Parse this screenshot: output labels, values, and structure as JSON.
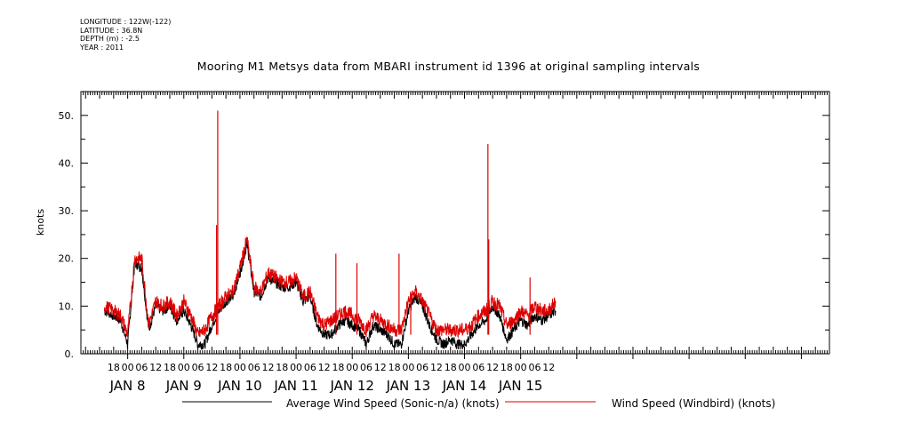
{
  "header": {
    "longitude": "LONGITUDE : 122W(-122)",
    "latitude": "LATITUDE : 36.8N",
    "depth": "DEPTH (m) : -2.5",
    "year": "YEAR : 2011"
  },
  "colors": {
    "series_average": "#000000",
    "series_windbird": "#dd0000",
    "axes": "#000000"
  },
  "chart_data": {
    "type": "line",
    "title": "Mooring M1 Metsys data from MBARI instrument id 1396 at original sampling intervals",
    "ylabel": "knots",
    "xlabel": "",
    "ylim": [
      0,
      55
    ],
    "xlim_hours_since_jan8_00": [
      -20,
      300
    ],
    "y_ticks": [
      "0.",
      "10.",
      "20.",
      "30.",
      "40.",
      "50."
    ],
    "x_hour_tick_labels": [
      "18",
      "00",
      "06",
      "12",
      "18",
      "00",
      "06",
      "12",
      "18",
      "00",
      "06",
      "12",
      "18",
      "00",
      "06",
      "12",
      "18",
      "00",
      "06",
      "12",
      "18",
      "00",
      "06",
      "12",
      "18",
      "00",
      "06",
      "12",
      "18",
      "00",
      "06",
      "12"
    ],
    "day_labels": [
      "JAN  8",
      "JAN  9",
      "JAN 10",
      "JAN 11",
      "JAN 12",
      "JAN 13",
      "JAN 14",
      "JAN 15"
    ],
    "grid": false,
    "legend_placement": "bottom",
    "series": [
      {
        "name": "Average Wind Speed (Sonic-n/a) (knots)",
        "color": "#000000",
        "x": [
          "2011-01-07 14:00",
          "2011-01-07 18:00",
          "2011-01-07 21:00",
          "2011-01-08 00:00",
          "2011-01-08 03:00",
          "2011-01-08 06:00",
          "2011-01-08 09:00",
          "2011-01-08 12:00",
          "2011-01-08 15:00",
          "2011-01-08 18:00",
          "2011-01-08 21:00",
          "2011-01-09 00:00",
          "2011-01-09 03:00",
          "2011-01-09 06:00",
          "2011-01-09 09:00",
          "2011-01-09 12:00",
          "2011-01-09 15:00",
          "2011-01-09 18:00",
          "2011-01-09 21:00",
          "2011-01-10 00:00",
          "2011-01-10 03:00",
          "2011-01-10 06:00",
          "2011-01-10 09:00",
          "2011-01-10 12:00",
          "2011-01-10 15:00",
          "2011-01-10 18:00",
          "2011-01-10 21:00",
          "2011-01-11 00:00",
          "2011-01-11 03:00",
          "2011-01-11 06:00",
          "2011-01-11 09:00",
          "2011-01-11 12:00",
          "2011-01-11 15:00",
          "2011-01-11 18:00",
          "2011-01-11 21:00",
          "2011-01-12 00:00",
          "2011-01-12 03:00",
          "2011-01-12 06:00",
          "2011-01-12 09:00",
          "2011-01-12 12:00",
          "2011-01-12 15:00",
          "2011-01-12 18:00",
          "2011-01-12 21:00",
          "2011-01-13 00:00",
          "2011-01-13 03:00",
          "2011-01-13 06:00",
          "2011-01-13 09:00",
          "2011-01-13 12:00",
          "2011-01-13 15:00",
          "2011-01-13 18:00",
          "2011-01-13 21:00",
          "2011-01-14 00:00",
          "2011-01-14 03:00",
          "2011-01-14 06:00",
          "2011-01-14 09:00",
          "2011-01-14 12:00",
          "2011-01-14 15:00",
          "2011-01-14 18:00",
          "2011-01-14 21:00",
          "2011-01-15 00:00",
          "2011-01-15 03:00",
          "2011-01-15 06:00",
          "2011-01-15 09:00",
          "2011-01-15 12:00",
          "2011-01-15 15:00"
        ],
        "values": [
          9,
          8,
          7,
          2,
          19,
          18,
          5,
          10,
          9,
          10,
          7,
          9,
          6,
          2,
          2,
          6,
          9,
          11,
          12,
          17,
          23,
          13,
          12,
          16,
          15,
          14,
          14,
          15,
          11,
          12,
          6,
          4,
          4,
          6,
          7,
          6,
          5,
          2,
          6,
          5,
          4,
          2,
          2,
          9,
          12,
          10,
          6,
          3,
          2,
          3,
          2,
          2,
          4,
          6,
          7,
          10,
          8,
          3,
          5,
          7,
          6,
          8,
          7,
          8,
          9
        ]
      },
      {
        "name": "Wind Speed (Windbird) (knots)",
        "color": "#dd0000",
        "x": [
          "2011-01-07 14:00",
          "2011-01-07 18:00",
          "2011-01-07 21:00",
          "2011-01-08 00:00",
          "2011-01-08 03:00",
          "2011-01-08 06:00",
          "2011-01-08 09:00",
          "2011-01-08 12:00",
          "2011-01-08 15:00",
          "2011-01-08 18:00",
          "2011-01-08 21:00",
          "2011-01-09 00:00",
          "2011-01-09 03:00",
          "2011-01-09 06:00",
          "2011-01-09 09:00",
          "2011-01-09 12:00",
          "2011-01-09 15:00",
          "2011-01-09 18:00",
          "2011-01-09 21:00",
          "2011-01-10 00:00",
          "2011-01-10 03:00",
          "2011-01-10 06:00",
          "2011-01-10 09:00",
          "2011-01-10 12:00",
          "2011-01-10 15:00",
          "2011-01-10 18:00",
          "2011-01-10 21:00",
          "2011-01-11 00:00",
          "2011-01-11 03:00",
          "2011-01-11 06:00",
          "2011-01-11 09:00",
          "2011-01-11 12:00",
          "2011-01-11 15:00",
          "2011-01-11 18:00",
          "2011-01-11 21:00",
          "2011-01-12 00:00",
          "2011-01-12 03:00",
          "2011-01-12 06:00",
          "2011-01-12 09:00",
          "2011-01-12 12:00",
          "2011-01-12 15:00",
          "2011-01-12 18:00",
          "2011-01-12 21:00",
          "2011-01-13 00:00",
          "2011-01-13 03:00",
          "2011-01-13 06:00",
          "2011-01-13 09:00",
          "2011-01-13 12:00",
          "2011-01-13 15:00",
          "2011-01-13 18:00",
          "2011-01-13 21:00",
          "2011-01-14 00:00",
          "2011-01-14 03:00",
          "2011-01-14 06:00",
          "2011-01-14 09:00",
          "2011-01-14 12:00",
          "2011-01-14 15:00",
          "2011-01-14 18:00",
          "2011-01-14 21:00",
          "2011-01-15 00:00",
          "2011-01-15 03:00",
          "2011-01-15 06:00",
          "2011-01-15 09:00",
          "2011-01-15 12:00",
          "2011-01-15 15:00"
        ],
        "values": [
          10,
          9,
          8,
          4,
          20,
          20,
          6,
          11,
          10,
          11,
          8,
          11,
          8,
          4,
          5,
          8,
          10,
          12,
          13,
          18,
          24,
          14,
          13,
          17,
          16,
          15,
          15,
          16,
          12,
          13,
          8,
          6,
          7,
          8,
          9,
          8,
          7,
          5,
          8,
          7,
          6,
          5,
          5,
          11,
          13,
          11,
          8,
          5,
          5,
          5,
          5,
          5,
          6,
          8,
          9,
          11,
          10,
          6,
          7,
          9,
          8,
          10,
          9,
          9,
          11
        ],
        "spikes": [
          {
            "x": "2011-01-09 14:00",
            "y": 27
          },
          {
            "x": "2011-01-09 14:30",
            "y": 51
          },
          {
            "x": "2011-01-11 17:00",
            "y": 21
          },
          {
            "x": "2011-01-12 02:00",
            "y": 19
          },
          {
            "x": "2011-01-12 20:00",
            "y": 21
          },
          {
            "x": "2011-01-13 01:00",
            "y": 13
          },
          {
            "x": "2011-01-14 10:00",
            "y": 44
          },
          {
            "x": "2011-01-14 10:20",
            "y": 24
          },
          {
            "x": "2011-01-15 04:00",
            "y": 16
          }
        ]
      }
    ]
  }
}
